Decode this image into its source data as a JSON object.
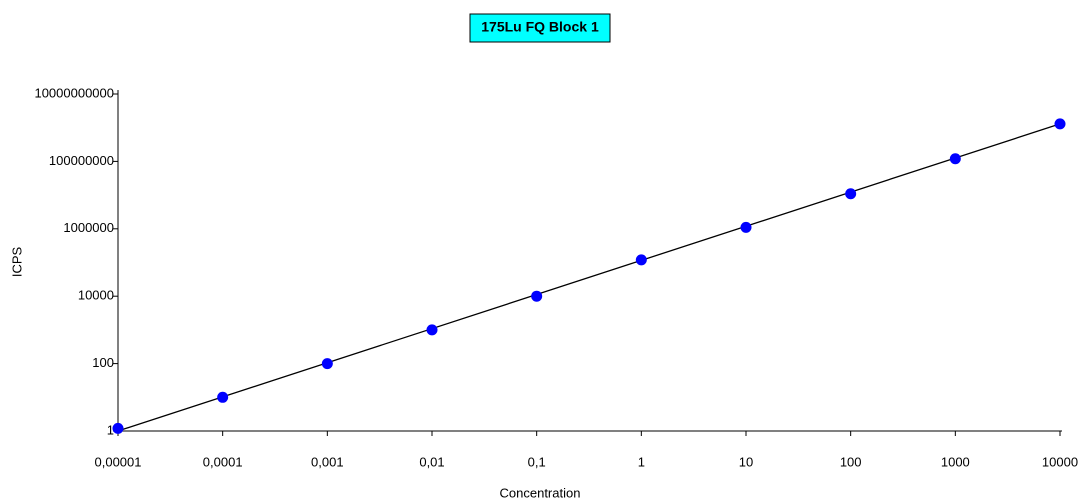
{
  "chart_data": {
    "type": "scatter",
    "title": "175Lu FQ Block 1",
    "xlabel": "Concentration",
    "ylabel": "ICPS",
    "xscale": "log",
    "yscale": "log",
    "x": [
      1e-05,
      0.0001,
      0.001,
      0.01,
      0.1,
      1,
      10,
      100,
      1000,
      10000
    ],
    "values": [
      1.2,
      10,
      100,
      1000,
      10000,
      120000,
      1100000,
      11000000,
      120000000,
      1300000000
    ],
    "color": "#0000ff",
    "fit": {
      "x": [
        1e-05,
        10000
      ],
      "values": [
        1,
        1300000000
      ],
      "color": "#000000"
    },
    "xlim": [
      1e-05,
      10000
    ],
    "ylim": [
      1,
      10000000000
    ],
    "xticks": [
      {
        "value": 1e-05,
        "label": "0,00001"
      },
      {
        "value": 0.0001,
        "label": "0,0001"
      },
      {
        "value": 0.001,
        "label": "0,001"
      },
      {
        "value": 0.01,
        "label": "0,01"
      },
      {
        "value": 0.1,
        "label": "0,1"
      },
      1,
      10,
      100,
      1000,
      10000
    ],
    "yticks": [
      1,
      100,
      10000,
      1000000,
      100000000,
      10000000000
    ]
  }
}
